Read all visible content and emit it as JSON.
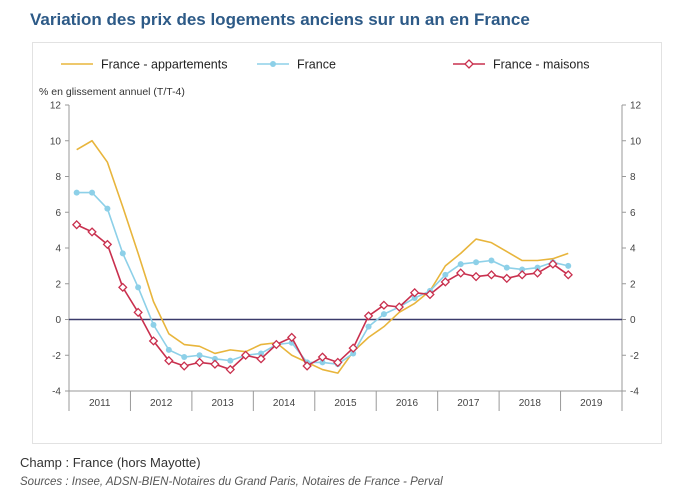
{
  "title": "Variation des prix des logements anciens sur un an en France",
  "notes": {
    "champ": "Champ : France (hors Mayotte)",
    "sources": "Sources : Insee, ADSN-BIEN-Notaires du Grand Paris, Notaires de France - Perval"
  },
  "chart_data": {
    "type": "line",
    "ylabel": "% en glissement annuel (T/T-4)",
    "ylim": [
      -4,
      12
    ],
    "yticks": [
      -4,
      -2,
      0,
      2,
      4,
      6,
      8,
      10,
      12
    ],
    "grid": false,
    "legend_position": "top",
    "x_year_labels": [
      "2011",
      "2012",
      "2013",
      "2014",
      "2015",
      "2016",
      "2017",
      "2018",
      "2019"
    ],
    "x_quarters": [
      "2011-T1",
      "2011-T2",
      "2011-T3",
      "2011-T4",
      "2012-T1",
      "2012-T2",
      "2012-T3",
      "2012-T4",
      "2013-T1",
      "2013-T2",
      "2013-T3",
      "2013-T4",
      "2014-T1",
      "2014-T2",
      "2014-T3",
      "2014-T4",
      "2015-T1",
      "2015-T2",
      "2015-T3",
      "2015-T4",
      "2016-T1",
      "2016-T2",
      "2016-T3",
      "2016-T4",
      "2017-T1",
      "2017-T2",
      "2017-T3",
      "2017-T4",
      "2018-T1",
      "2018-T2",
      "2018-T3",
      "2018-T4",
      "2019-T1"
    ],
    "series": [
      {
        "name": "France - appartements",
        "color": "#e8b53c",
        "marker": "none",
        "values": [
          9.5,
          10.0,
          8.8,
          6.3,
          3.7,
          1.0,
          -0.8,
          -1.4,
          -1.5,
          -1.9,
          -1.7,
          -1.8,
          -1.4,
          -1.3,
          -2.0,
          -2.4,
          -2.8,
          -3.0,
          -1.8,
          -1.0,
          -0.4,
          0.4,
          0.9,
          1.6,
          3.0,
          3.7,
          4.5,
          4.3,
          3.8,
          3.3,
          3.3,
          3.4,
          3.7
        ]
      },
      {
        "name": "France",
        "color": "#8dd0e8",
        "marker": "circle",
        "values": [
          7.1,
          7.1,
          6.2,
          3.7,
          1.8,
          -0.3,
          -1.7,
          -2.1,
          -2.0,
          -2.2,
          -2.3,
          -2.0,
          -1.9,
          -1.4,
          -1.3,
          -2.4,
          -2.4,
          -2.5,
          -1.9,
          -0.4,
          0.3,
          0.7,
          1.2,
          1.6,
          2.5,
          3.1,
          3.2,
          3.3,
          2.9,
          2.8,
          2.9,
          3.2,
          3.0
        ]
      },
      {
        "name": "France - maisons",
        "color": "#c9304e",
        "marker": "diamond",
        "values": [
          5.3,
          4.9,
          4.2,
          1.8,
          0.4,
          -1.2,
          -2.3,
          -2.6,
          -2.4,
          -2.5,
          -2.8,
          -2.0,
          -2.2,
          -1.4,
          -1.0,
          -2.6,
          -2.1,
          -2.4,
          -1.6,
          0.2,
          0.8,
          0.7,
          1.5,
          1.4,
          2.1,
          2.6,
          2.4,
          2.5,
          2.3,
          2.5,
          2.6,
          3.1,
          2.5
        ]
      }
    ]
  }
}
